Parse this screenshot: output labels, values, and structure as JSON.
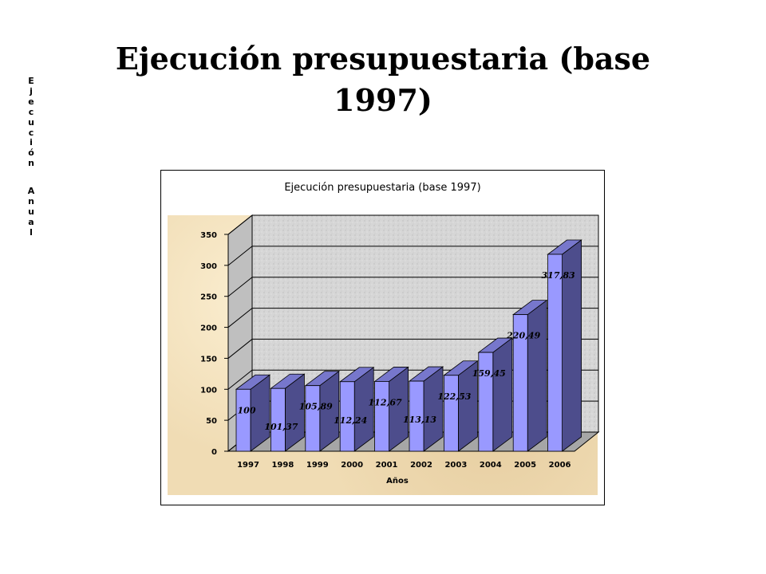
{
  "slide": {
    "title": "Ejecución presupuestaria (base 1997)"
  },
  "chart_data": {
    "type": "bar",
    "title": "Ejecución presupuestaria (base 1997)",
    "xlabel": "Años",
    "ylabel": "Ejecución Anual",
    "categories": [
      "1997",
      "1998",
      "1999",
      "2000",
      "2001",
      "2002",
      "2003",
      "2004",
      "2005",
      "2006"
    ],
    "values": [
      100,
      101.37,
      105.89,
      112.24,
      112.67,
      113.13,
      122.53,
      159.45,
      220.49,
      317.83
    ],
    "data_labels": [
      "100",
      "101,37",
      "105,89",
      "112,24",
      "112,67",
      "113,13",
      "122,53",
      "159,45",
      "220,49",
      "317,83"
    ],
    "ylim": [
      0,
      350
    ],
    "yticks": [
      0,
      50,
      100,
      150,
      200,
      250,
      300,
      350
    ],
    "grid": true,
    "style": "3d-column",
    "colors": {
      "bar_front": "#9999ff",
      "bar_side": "#4d4d8c",
      "bar_top": "#7777cc",
      "plot_wall": "#d9d9d9"
    }
  }
}
